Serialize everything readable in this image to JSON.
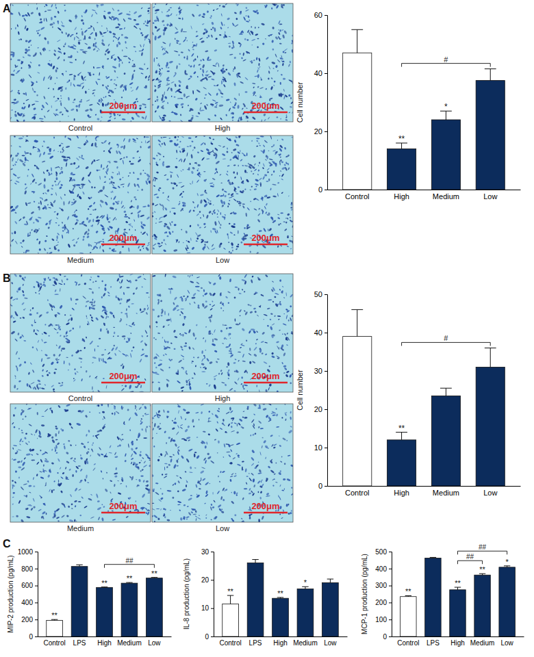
{
  "panels": [
    {
      "letter": "A",
      "images": [
        {
          "caption": "Control",
          "scale_bar": "200μm"
        },
        {
          "caption": "High",
          "scale_bar": "200μm"
        },
        {
          "caption": "Medium",
          "scale_bar": "200μm"
        },
        {
          "caption": "Low",
          "scale_bar": "200μm"
        }
      ]
    },
    {
      "letter": "B",
      "images": [
        {
          "caption": "Control",
          "scale_bar": "200μm"
        },
        {
          "caption": "High",
          "scale_bar": "200μm"
        },
        {
          "caption": "Medium",
          "scale_bar": "200μm"
        },
        {
          "caption": "Low",
          "scale_bar": "200μm"
        }
      ]
    },
    {
      "letter": "C"
    }
  ],
  "chart_data": [
    {
      "type": "bar",
      "y_label": "Cell number",
      "categories": [
        "Control",
        "High",
        "Medium",
        "Low"
      ],
      "values": [
        47,
        14,
        24,
        37.5
      ],
      "errors": [
        8,
        2,
        3,
        4
      ],
      "colors": [
        "#ffffff",
        "#0c2c5c",
        "#0c2c5c",
        "#0c2c5c"
      ],
      "ylim": [
        0,
        60
      ],
      "yticks": [
        0,
        20,
        40,
        60
      ],
      "significance": [
        null,
        "**",
        "*",
        null
      ],
      "brackets": [
        {
          "from": "High",
          "to": "Low",
          "label": "#"
        }
      ]
    },
    {
      "type": "bar",
      "y_label": "Cell number",
      "categories": [
        "Control",
        "High",
        "Medium",
        "Low"
      ],
      "values": [
        39,
        12,
        23.5,
        31
      ],
      "errors": [
        7,
        2,
        2,
        5
      ],
      "colors": [
        "#ffffff",
        "#0c2c5c",
        "#0c2c5c",
        "#0c2c5c"
      ],
      "ylim": [
        0,
        50
      ],
      "yticks": [
        0,
        10,
        20,
        30,
        40,
        50
      ],
      "significance": [
        null,
        "**",
        null,
        null
      ],
      "brackets": [
        {
          "from": "High",
          "to": "Low",
          "label": "#"
        }
      ]
    },
    {
      "type": "bar",
      "y_label": "MIP-2 production (pg/mL)",
      "categories": [
        "Control",
        "LPS",
        "High",
        "Medium",
        "Low"
      ],
      "values": [
        190,
        825,
        578,
        628,
        688
      ],
      "errors": [
        10,
        20,
        5,
        8,
        8
      ],
      "colors": [
        "#ffffff",
        "#0c2c5c",
        "#0c2c5c",
        "#0c2c5c",
        "#0c2c5c"
      ],
      "ylim": [
        0,
        1000
      ],
      "yticks": [
        0,
        200,
        400,
        600,
        800,
        1000
      ],
      "significance": [
        "**",
        null,
        "**",
        "**",
        "**"
      ],
      "brackets": [
        {
          "from": "High",
          "to": "Low",
          "label": "##"
        }
      ]
    },
    {
      "type": "bar",
      "y_label": "IL-8 production (pg/mL)",
      "categories": [
        "Control",
        "LPS",
        "High",
        "Medium",
        "Low"
      ],
      "values": [
        11.5,
        26,
        13.5,
        16.8,
        19
      ],
      "errors": [
        3,
        1.2,
        0.3,
        0.8,
        1.3
      ],
      "colors": [
        "#ffffff",
        "#0c2c5c",
        "#0c2c5c",
        "#0c2c5c",
        "#0c2c5c"
      ],
      "ylim": [
        0,
        30
      ],
      "yticks": [
        0,
        10,
        20,
        30
      ],
      "significance": [
        "**",
        null,
        "**",
        "*",
        null
      ]
    },
    {
      "type": "bar",
      "y_label": "MCP-1 production (pg/mL)",
      "categories": [
        "Control",
        "LPS",
        "High",
        "Medium",
        "Low"
      ],
      "values": [
        235,
        462,
        275,
        362,
        408
      ],
      "errors": [
        5,
        4,
        15,
        8,
        8
      ],
      "colors": [
        "#ffffff",
        "#0c2c5c",
        "#0c2c5c",
        "#0c2c5c",
        "#0c2c5c"
      ],
      "ylim": [
        0,
        500
      ],
      "yticks": [
        0,
        100,
        200,
        300,
        400,
        500
      ],
      "significance": [
        "**",
        null,
        "**",
        "**",
        "*"
      ],
      "brackets": [
        {
          "from": "High",
          "to": "Medium",
          "label": "##"
        },
        {
          "from": "High",
          "to": "Low",
          "label": "##"
        }
      ]
    }
  ]
}
